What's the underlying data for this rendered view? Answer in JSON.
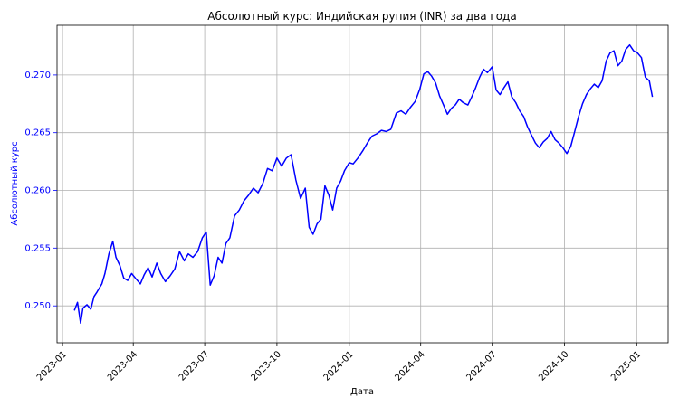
{
  "chart_data": {
    "type": "line",
    "title": "Абсолютный курс: Индийская рупия (INR) за два года",
    "xlabel": "Дата",
    "ylabel": "Абсолютный курс",
    "ylim": [
      0.2468,
      0.2743
    ],
    "xlim": [
      "2022-12-25",
      "2025-02-10"
    ],
    "grid": true,
    "x_ticks": [
      "2023-01-01",
      "2023-04-01",
      "2023-07-01",
      "2023-10-01",
      "2024-01-01",
      "2024-04-01",
      "2024-07-01",
      "2024-10-01",
      "2025-01-01"
    ],
    "x_tick_labels": [
      "2023-01",
      "2023-04",
      "2023-07",
      "2023-10",
      "2024-01",
      "2024-04",
      "2024-07",
      "2024-10",
      "2025-01"
    ],
    "y_ticks": [
      0.25,
      0.255,
      0.26,
      0.265,
      0.27
    ],
    "y_tick_labels": [
      "0.250",
      "0.255",
      "0.260",
      "0.265",
      "0.270"
    ],
    "colors": {
      "line": "#0000ff",
      "ylabel": "#0000ff"
    },
    "series": [
      {
        "x": [
          "2023-01-16",
          "2023-01-20",
          "2023-01-24",
          "2023-01-27",
          "2023-02-01",
          "2023-02-06",
          "2023-02-10",
          "2023-02-14",
          "2023-02-20",
          "2023-02-24",
          "2023-03-01",
          "2023-03-06",
          "2023-03-10",
          "2023-03-15",
          "2023-03-20",
          "2023-03-25",
          "2023-03-30",
          "2023-04-05",
          "2023-04-10",
          "2023-04-15",
          "2023-04-20",
          "2023-04-25",
          "2023-05-01",
          "2023-05-06",
          "2023-05-12",
          "2023-05-18",
          "2023-05-24",
          "2023-05-30",
          "2023-06-05",
          "2023-06-10",
          "2023-06-16",
          "2023-06-22",
          "2023-06-28",
          "2023-07-03",
          "2023-07-08",
          "2023-07-13",
          "2023-07-18",
          "2023-07-23",
          "2023-07-28",
          "2023-08-02",
          "2023-08-08",
          "2023-08-14",
          "2023-08-20",
          "2023-08-26",
          "2023-09-01",
          "2023-09-07",
          "2023-09-13",
          "2023-09-19",
          "2023-09-25",
          "2023-10-01",
          "2023-10-07",
          "2023-10-13",
          "2023-10-19",
          "2023-10-25",
          "2023-10-31",
          "2023-11-06",
          "2023-11-11",
          "2023-11-16",
          "2023-11-21",
          "2023-11-26",
          "2023-12-01",
          "2023-12-06",
          "2023-12-11",
          "2023-12-16",
          "2023-12-21",
          "2023-12-26",
          "2024-01-01",
          "2024-01-06",
          "2024-01-12",
          "2024-01-18",
          "2024-01-24",
          "2024-01-30",
          "2024-02-05",
          "2024-02-11",
          "2024-02-17",
          "2024-02-23",
          "2024-03-01",
          "2024-03-07",
          "2024-03-13",
          "2024-03-19",
          "2024-03-25",
          "2024-03-31",
          "2024-04-05",
          "2024-04-10",
          "2024-04-15",
          "2024-04-20",
          "2024-04-25",
          "2024-04-30",
          "2024-05-05",
          "2024-05-10",
          "2024-05-15",
          "2024-05-20",
          "2024-05-25",
          "2024-05-31",
          "2024-06-05",
          "2024-06-10",
          "2024-06-15",
          "2024-06-20",
          "2024-06-25",
          "2024-07-01",
          "2024-07-06",
          "2024-07-11",
          "2024-07-16",
          "2024-07-21",
          "2024-07-26",
          "2024-07-31",
          "2024-08-05",
          "2024-08-10",
          "2024-08-15",
          "2024-08-20",
          "2024-08-25",
          "2024-08-30",
          "2024-09-04",
          "2024-09-09",
          "2024-09-14",
          "2024-09-19",
          "2024-09-24",
          "2024-09-29",
          "2024-10-04",
          "2024-10-09",
          "2024-10-14",
          "2024-10-19",
          "2024-10-24",
          "2024-10-29",
          "2024-11-03",
          "2024-11-08",
          "2024-11-13",
          "2024-11-18",
          "2024-11-23",
          "2024-11-28",
          "2024-12-03",
          "2024-12-08",
          "2024-12-13",
          "2024-12-18",
          "2024-12-23",
          "2024-12-28",
          "2025-01-02",
          "2025-01-07",
          "2025-01-12",
          "2025-01-17",
          "2025-01-21"
        ],
        "y": [
          0.2496,
          0.2503,
          0.2485,
          0.2498,
          0.2501,
          0.2497,
          0.2508,
          0.2512,
          0.2519,
          0.2528,
          0.2545,
          0.2556,
          0.2542,
          0.2535,
          0.2524,
          0.2522,
          0.2528,
          0.2523,
          0.2519,
          0.2527,
          0.2533,
          0.2525,
          0.2537,
          0.2528,
          0.2521,
          0.2526,
          0.2532,
          0.2547,
          0.2539,
          0.2545,
          0.2542,
          0.2547,
          0.2559,
          0.2564,
          0.2518,
          0.2526,
          0.2542,
          0.2537,
          0.2554,
          0.2559,
          0.2578,
          0.2583,
          0.2591,
          0.2596,
          0.2602,
          0.2598,
          0.2606,
          0.2619,
          0.2617,
          0.2628,
          0.2621,
          0.2628,
          0.2631,
          0.2609,
          0.2593,
          0.2602,
          0.2568,
          0.2562,
          0.2571,
          0.2575,
          0.2604,
          0.2596,
          0.2583,
          0.2602,
          0.2608,
          0.2617,
          0.2624,
          0.2623,
          0.2628,
          0.2634,
          0.2641,
          0.2647,
          0.2649,
          0.2652,
          0.2651,
          0.2653,
          0.2667,
          0.2669,
          0.2666,
          0.2672,
          0.2677,
          0.2688,
          0.2701,
          0.2703,
          0.2699,
          0.2693,
          0.2682,
          0.2674,
          0.2666,
          0.2671,
          0.2674,
          0.2679,
          0.2676,
          0.2674,
          0.2681,
          0.2689,
          0.2698,
          0.2705,
          0.2702,
          0.2707,
          0.2687,
          0.2683,
          0.2689,
          0.2694,
          0.2681,
          0.2676,
          0.2669,
          0.2664,
          0.2655,
          0.2648,
          0.2641,
          0.2637,
          0.2642,
          0.2645,
          0.2651,
          0.2644,
          0.2641,
          0.2637,
          0.2632,
          0.2638,
          0.2651,
          0.2664,
          0.2675,
          0.2683,
          0.2688,
          0.2692,
          0.2689,
          0.2695,
          0.2712,
          0.2719,
          0.2721,
          0.2708,
          0.2712,
          0.2722,
          0.2726,
          0.2721,
          0.2719,
          0.2715,
          0.2698,
          0.2695,
          0.2681
        ]
      }
    ]
  }
}
